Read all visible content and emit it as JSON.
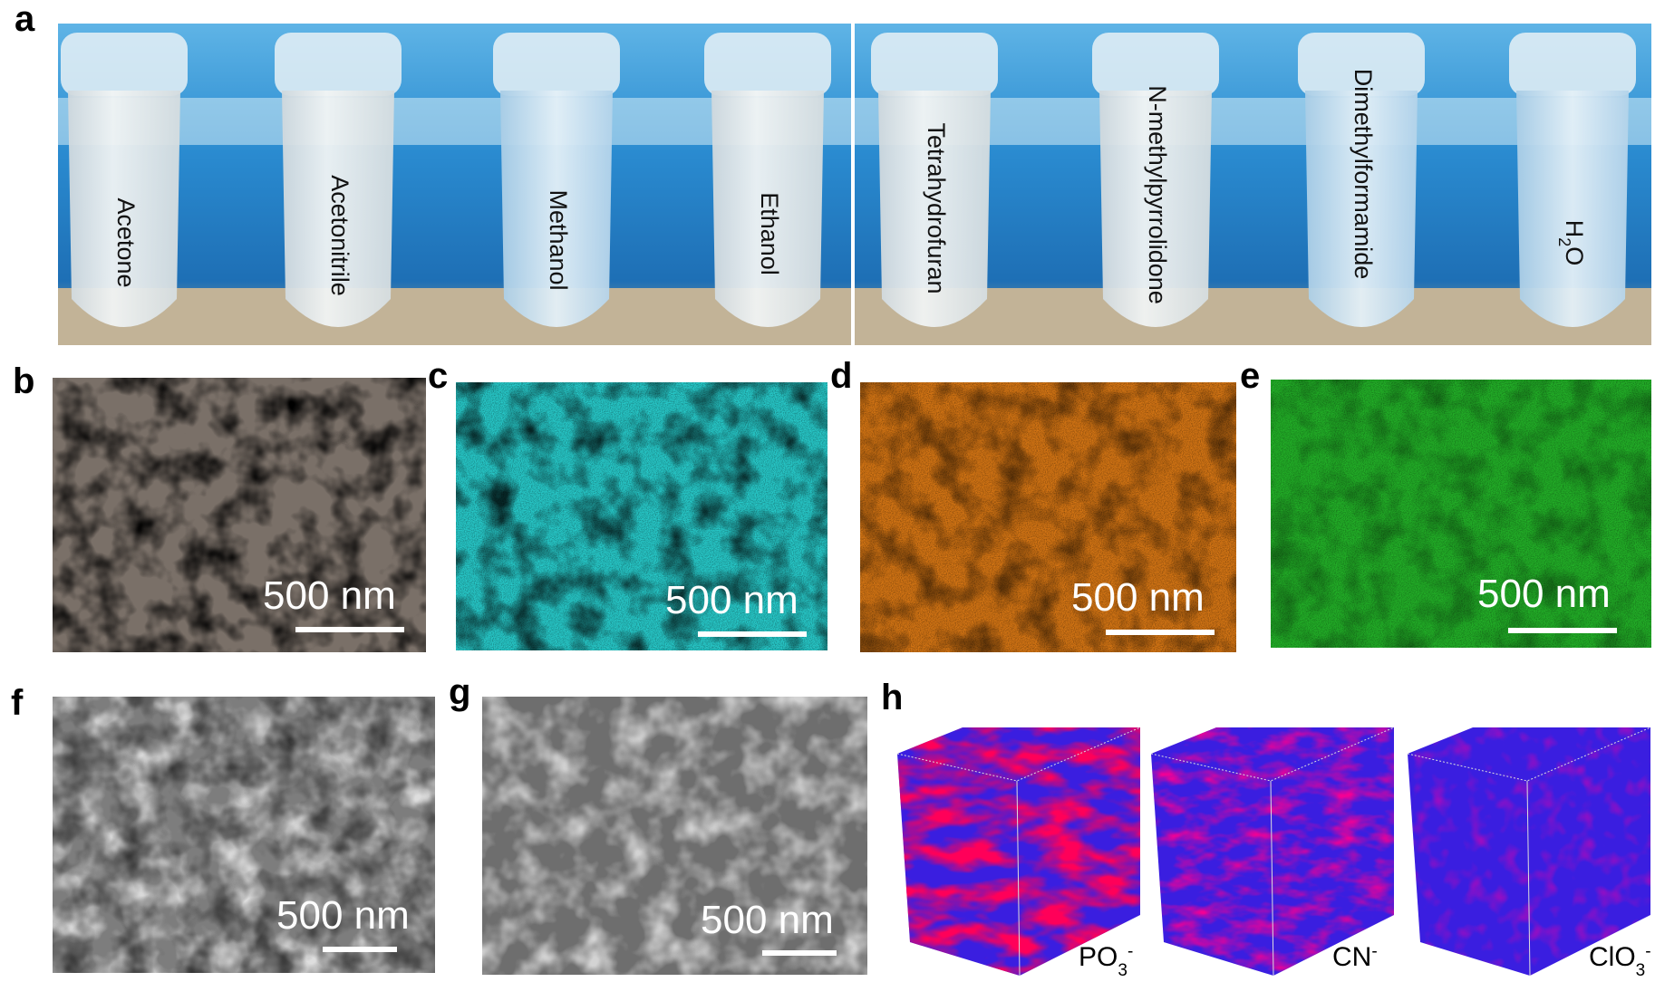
{
  "panels": {
    "a": {
      "label": "a",
      "solvents": [
        "Acetone",
        "Acetonitrile",
        "Methanol",
        "Ethanol",
        "Tetrahydrofuran",
        "N-methylpyrrolidone",
        "Dimethylformamide"
      ],
      "water": {
        "base": "H",
        "sub": "2",
        "tail": "O"
      }
    },
    "b": {
      "label": "b",
      "scale": "500 nm",
      "color": "#6b6159"
    },
    "c": {
      "label": "c",
      "scale": "500 nm",
      "color": "#1fb8b8"
    },
    "d": {
      "label": "d",
      "scale": "500 nm",
      "color": "#c86a12"
    },
    "e": {
      "label": "e",
      "scale": "500 nm",
      "color": "#1fa324"
    },
    "f": {
      "label": "f",
      "scale": "500 nm"
    },
    "g": {
      "label": "g",
      "scale": "500 nm"
    },
    "h": {
      "label": "h",
      "ions": [
        {
          "base": "PO",
          "sub": "3",
          "sup": "-"
        },
        {
          "base": "CN",
          "sub": "",
          "sup": "-"
        },
        {
          "base": "ClO",
          "sub": "3",
          "sup": "-"
        }
      ]
    }
  }
}
